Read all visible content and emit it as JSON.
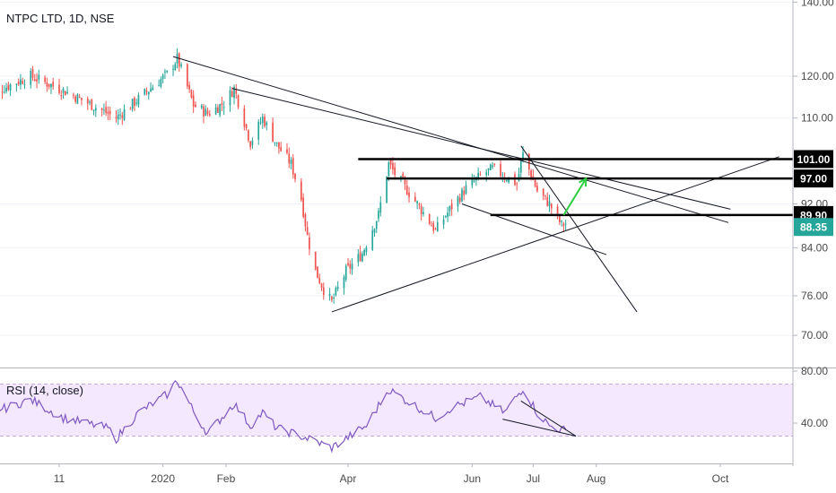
{
  "chart_data": {
    "type": "candlestick",
    "title": "NTPC LTD, 1D, NSE",
    "y_scale": "log",
    "price_axis_ticks": [
      "140.00",
      "120.00",
      "110.00",
      "92.00",
      "84.00",
      "76.00",
      "70.00"
    ],
    "time_axis_labels": [
      {
        "label": "11",
        "x": "2019-11-11"
      },
      {
        "label": "2020",
        "x": "2020-01-01"
      },
      {
        "label": "Feb",
        "x": "2020-02-01"
      },
      {
        "label": "Apr",
        "x": "2020-04-01"
      },
      {
        "label": "Jun",
        "x": "2020-06-01"
      },
      {
        "label": "Jul",
        "x": "2020-07-01"
      },
      {
        "label": "Aug",
        "x": "2020-08-01"
      },
      {
        "label": "Oct",
        "x": "2020-10-01"
      }
    ],
    "horizontal_levels": [
      {
        "label": "101.00",
        "value": 101.0,
        "from": "2020-04-06",
        "to": "2020-10-30"
      },
      {
        "label": "97.00",
        "value": 97.0,
        "from": "2020-04-20",
        "to": "2020-10-30"
      },
      {
        "label": "89.90",
        "value": 89.9,
        "from": "2020-06-10",
        "to": "2020-10-30"
      }
    ],
    "last_price": {
      "label": "88.35",
      "value": 88.35,
      "color": "#26a69a"
    },
    "trendlines": [
      {
        "from": [
          "2020-01-06",
          125.0
        ],
        "to": [
          "2020-10-05",
          88.5
        ]
      },
      {
        "from": [
          "2020-02-04",
          117.0
        ],
        "to": [
          "2020-10-06",
          91.0
        ]
      },
      {
        "from": [
          "2020-03-24",
          73.5
        ],
        "to": [
          "2020-10-30",
          101.5
        ]
      },
      {
        "from": [
          "2020-05-27",
          92.0
        ],
        "to": [
          "2020-08-06",
          82.8
        ]
      },
      {
        "from": [
          "2020-06-25",
          103.8
        ],
        "to": [
          "2020-08-21",
          73.5
        ]
      }
    ],
    "projection_arrow": {
      "color": "#2ecc40",
      "from": [
        "2020-07-16",
        89.9
      ],
      "to": [
        "2020-07-27",
        97.0
      ]
    },
    "colors": {
      "up": "#26a69a",
      "down": "#ef5350",
      "line": "#131722",
      "rsi": "#7e57c2",
      "rsi_band": "#f3e8fd"
    },
    "rsi": {
      "label": "RSI (14, close)",
      "ticks": [
        "80.00",
        "40.00"
      ],
      "upper": 70,
      "lower": 30,
      "trendlines": [
        {
          "from": [
            "2020-06-16",
            43.0
          ],
          "to": [
            "2020-07-22",
            30.0
          ]
        },
        {
          "from": [
            "2020-06-25",
            57.0
          ],
          "to": [
            "2020-07-22",
            30.0
          ]
        }
      ]
    },
    "anchors": [
      [
        "2019-10-07",
        115.5
      ],
      [
        "2019-10-28",
        120.0
      ],
      [
        "2019-11-13",
        116.5
      ],
      [
        "2019-12-09",
        110.0
      ],
      [
        "2019-12-20",
        114.5
      ],
      [
        "2020-01-03",
        120.5
      ],
      [
        "2020-01-08",
        124.5
      ],
      [
        "2020-01-16",
        113.0
      ],
      [
        "2020-01-23",
        111.0
      ],
      [
        "2020-01-31",
        113.5
      ],
      [
        "2020-02-05",
        117.0
      ],
      [
        "2020-02-13",
        104.5
      ],
      [
        "2020-02-19",
        110.0
      ],
      [
        "2020-02-26",
        104.0
      ],
      [
        "2020-03-04",
        100.0
      ],
      [
        "2020-03-09",
        93.0
      ],
      [
        "2020-03-12",
        86.0
      ],
      [
        "2020-03-16",
        80.0
      ],
      [
        "2020-03-20",
        77.0
      ],
      [
        "2020-03-24",
        75.0
      ],
      [
        "2020-03-31",
        80.0
      ],
      [
        "2020-04-08",
        83.0
      ],
      [
        "2020-04-16",
        90.0
      ],
      [
        "2020-04-21",
        100.0
      ],
      [
        "2020-04-24",
        98.0
      ],
      [
        "2020-05-05",
        92.0
      ],
      [
        "2020-05-14",
        87.0
      ],
      [
        "2020-05-22",
        91.5
      ],
      [
        "2020-05-29",
        95.0
      ],
      [
        "2020-06-05",
        97.5
      ],
      [
        "2020-06-11",
        99.0
      ],
      [
        "2020-06-17",
        97.5
      ],
      [
        "2020-06-23",
        96.0
      ],
      [
        "2020-06-26",
        102.0
      ],
      [
        "2020-07-03",
        94.5
      ],
      [
        "2020-07-09",
        92.0
      ],
      [
        "2020-07-15",
        88.0
      ],
      [
        "2020-07-17",
        88.35
      ]
    ],
    "rsi_anchors": [
      [
        "2019-10-07",
        47
      ],
      [
        "2019-10-28",
        58
      ],
      [
        "2019-11-13",
        44
      ],
      [
        "2019-12-05",
        36
      ],
      [
        "2019-12-09",
        28
      ],
      [
        "2019-12-20",
        48
      ],
      [
        "2020-01-03",
        62
      ],
      [
        "2020-01-08",
        73
      ],
      [
        "2020-01-16",
        49
      ],
      [
        "2020-01-23",
        32
      ],
      [
        "2020-02-05",
        55
      ],
      [
        "2020-02-13",
        38
      ],
      [
        "2020-02-19",
        48
      ],
      [
        "2020-02-26",
        36
      ],
      [
        "2020-03-09",
        30
      ],
      [
        "2020-03-16",
        26
      ],
      [
        "2020-03-24",
        21
      ],
      [
        "2020-03-31",
        28
      ],
      [
        "2020-04-10",
        38
      ],
      [
        "2020-04-21",
        66
      ],
      [
        "2020-04-29",
        58
      ],
      [
        "2020-05-14",
        44
      ],
      [
        "2020-05-22",
        52
      ],
      [
        "2020-06-05",
        60
      ],
      [
        "2020-06-17",
        48
      ],
      [
        "2020-06-26",
        67
      ],
      [
        "2020-07-03",
        48
      ],
      [
        "2020-07-09",
        38
      ],
      [
        "2020-07-17",
        34
      ]
    ]
  }
}
